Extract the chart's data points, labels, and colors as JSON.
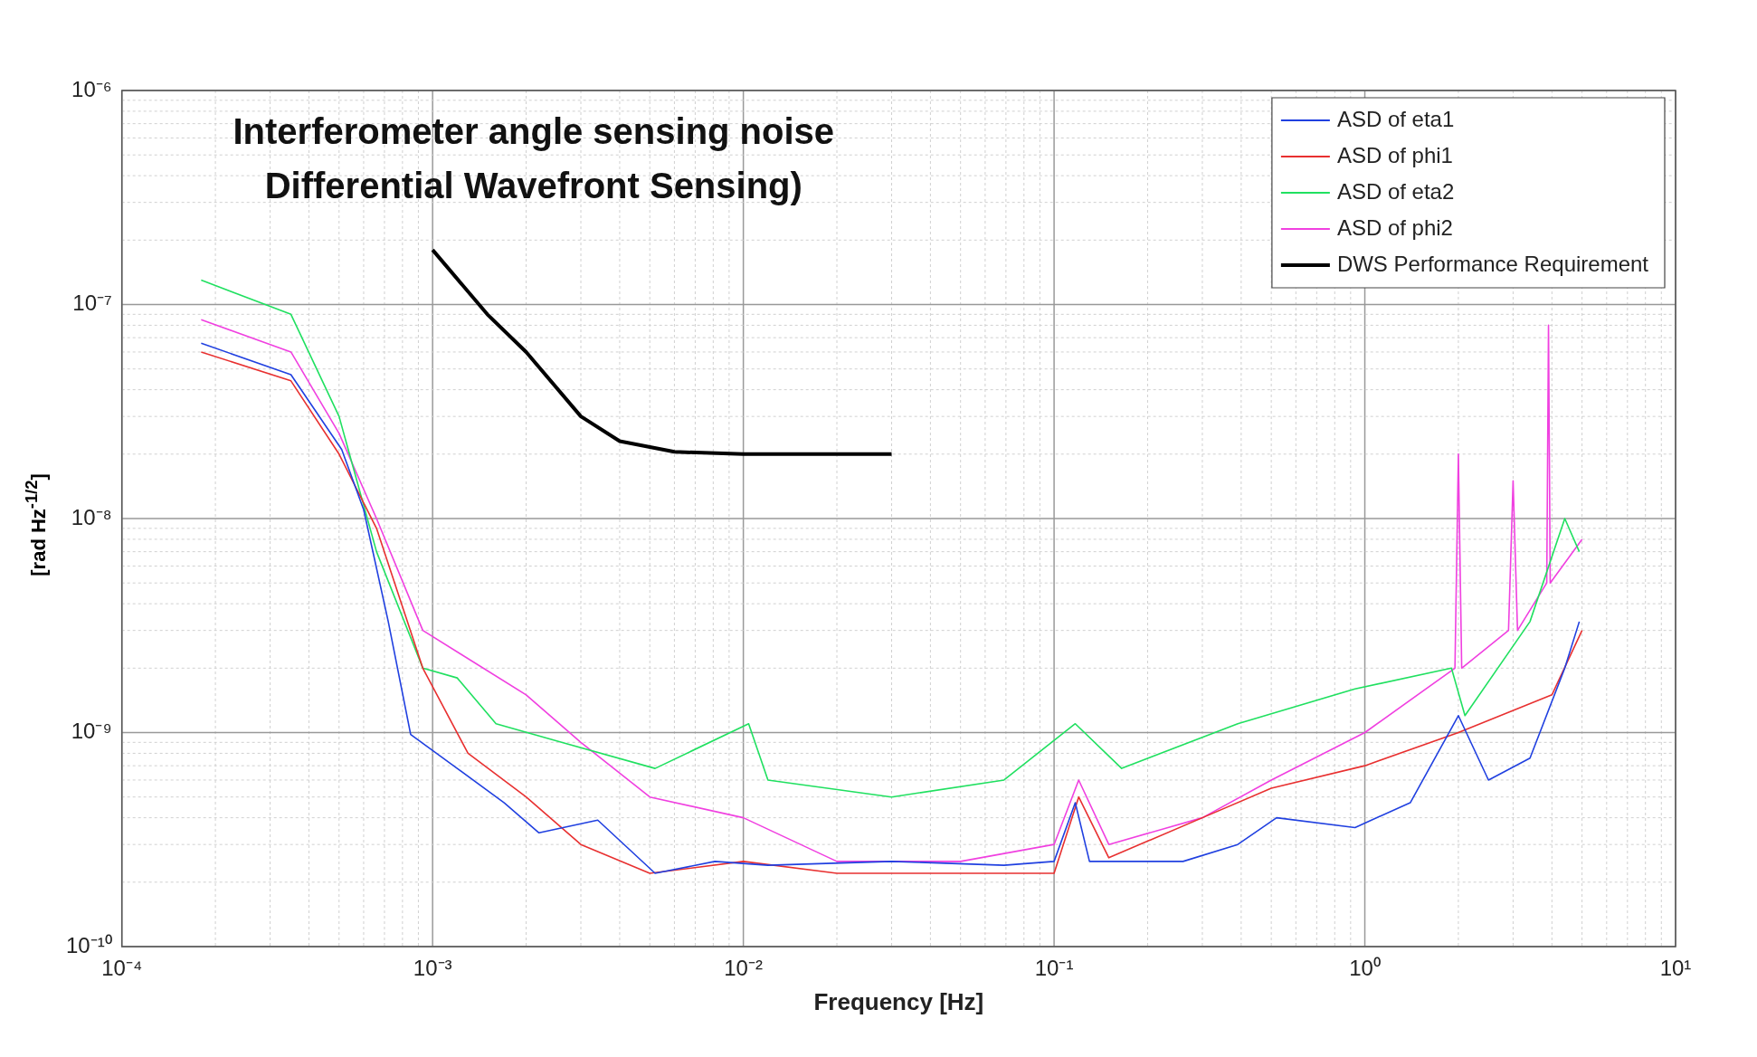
{
  "chart_data": {
    "type": "line",
    "title": "Interferometer angle sensing noise\nDifferential Wavefront Sensing)",
    "xlabel": "Frequency [Hz]",
    "ylabel": "[rad Hz$^{-1/2}$]",
    "log": "xy",
    "grid": true,
    "legend": "top right",
    "marker": "none",
    "line_style": "solid",
    "xlim": [
      0.0001,
      10
    ],
    "ylim": [
      1e-10,
      1e-06
    ],
    "xticks": [
      {
        "value": 0.0001,
        "label": "10⁻⁴"
      },
      {
        "value": 0.001,
        "label": "10⁻³"
      },
      {
        "value": 0.01,
        "label": "10⁻²"
      },
      {
        "value": 0.1,
        "label": "10⁻¹"
      },
      {
        "value": 1,
        "label": "10⁰"
      },
      {
        "value": 10,
        "label": "10¹"
      }
    ],
    "yticks": [
      {
        "value": 1e-10,
        "label": "10⁻¹⁰"
      },
      {
        "value": 1e-09,
        "label": "10⁻⁹"
      },
      {
        "value": 1e-08,
        "label": "10⁻⁸"
      },
      {
        "value": 1e-07,
        "label": "10⁻⁷"
      },
      {
        "value": 1e-06,
        "label": "10⁻⁶"
      }
    ],
    "series": [
      {
        "name": "ASD of eta1",
        "color": "#2040e0",
        "x": [
          0.00018,
          0.00035,
          0.00051,
          0.0006,
          0.00072,
          0.00085,
          0.0012,
          0.0017,
          0.0022,
          0.0034,
          0.0052,
          0.0081,
          0.012,
          0.03,
          0.069,
          0.1,
          0.117,
          0.13,
          0.26,
          0.39,
          0.52,
          0.93,
          1.4,
          2.0,
          2.5,
          3.4,
          4.4,
          4.9
        ],
        "values": [
          6.6e-08,
          4.7e-08,
          2.1e-08,
          1.1e-08,
          3.3e-09,
          9.8e-10,
          6.8e-10,
          4.7e-10,
          3.4e-10,
          3.9e-10,
          2.2e-10,
          2.5e-10,
          2.4e-10,
          2.5e-10,
          2.4e-10,
          2.5e-10,
          4.7e-10,
          2.5e-10,
          2.5e-10,
          3e-10,
          4e-10,
          3.6e-10,
          4.7e-10,
          1.2e-09,
          6e-10,
          7.6e-10,
          2e-09,
          3.3e-09
        ]
      },
      {
        "name": "ASD of phi1",
        "color": "#e83030",
        "x": [
          0.00018,
          0.00035,
          0.0005,
          0.00066,
          0.00093,
          0.0013,
          0.002,
          0.003,
          0.005,
          0.01,
          0.02,
          0.05,
          0.1,
          0.12,
          0.15,
          0.3,
          0.5,
          1,
          2,
          4,
          5
        ],
        "values": [
          6e-08,
          4.4e-08,
          2e-08,
          9e-09,
          2e-09,
          8e-10,
          5e-10,
          3e-10,
          2.2e-10,
          2.5e-10,
          2.2e-10,
          2.2e-10,
          2.2e-10,
          5e-10,
          2.6e-10,
          4e-10,
          5.5e-10,
          7e-10,
          1e-09,
          1.5e-09,
          3e-09
        ]
      },
      {
        "name": "ASD of eta2",
        "color": "#20e060",
        "x": [
          0.00018,
          0.00035,
          0.0005,
          0.00066,
          0.00093,
          0.0012,
          0.0016,
          0.0026,
          0.0052,
          0.0104,
          0.012,
          0.03,
          0.069,
          0.117,
          0.165,
          0.39,
          0.93,
          1.9,
          2.1,
          3.4,
          4.4,
          4.9
        ],
        "values": [
          1.3e-07,
          9e-08,
          3e-08,
          7e-09,
          2e-09,
          1.8e-09,
          1.1e-09,
          9e-10,
          6.8e-10,
          1.1e-09,
          6e-10,
          5e-10,
          6e-10,
          1.1e-09,
          6.8e-10,
          1.1e-09,
          1.6e-09,
          2e-09,
          1.2e-09,
          3.3e-09,
          1e-08,
          7e-09
        ]
      },
      {
        "name": "ASD of phi2",
        "color": "#f040e0",
        "x": [
          0.00018,
          0.00035,
          0.0005,
          0.00066,
          0.00093,
          0.002,
          0.003,
          0.005,
          0.01,
          0.02,
          0.05,
          0.1,
          0.12,
          0.15,
          0.3,
          0.5,
          1,
          1.95,
          2.0,
          2.05,
          2.9,
          3.0,
          3.1,
          3.85,
          3.9,
          3.95,
          5
        ],
        "values": [
          8.5e-08,
          6e-08,
          2.5e-08,
          1e-08,
          3e-09,
          1.5e-09,
          9e-10,
          5e-10,
          4e-10,
          2.5e-10,
          2.5e-10,
          3e-10,
          6e-10,
          3e-10,
          4e-10,
          6e-10,
          1e-09,
          2e-09,
          2e-08,
          2e-09,
          3e-09,
          1.5e-08,
          3e-09,
          5e-09,
          8e-08,
          5e-09,
          8e-09
        ]
      },
      {
        "name": "DWS Performance Requirement",
        "color": "#000000",
        "x": [
          0.001,
          0.0015,
          0.002,
          0.003,
          0.004,
          0.006,
          0.01,
          0.03
        ],
        "values": [
          1.8e-07,
          9e-08,
          6e-08,
          3e-08,
          2.3e-08,
          2.05e-08,
          2e-08,
          2e-08
        ]
      }
    ]
  }
}
